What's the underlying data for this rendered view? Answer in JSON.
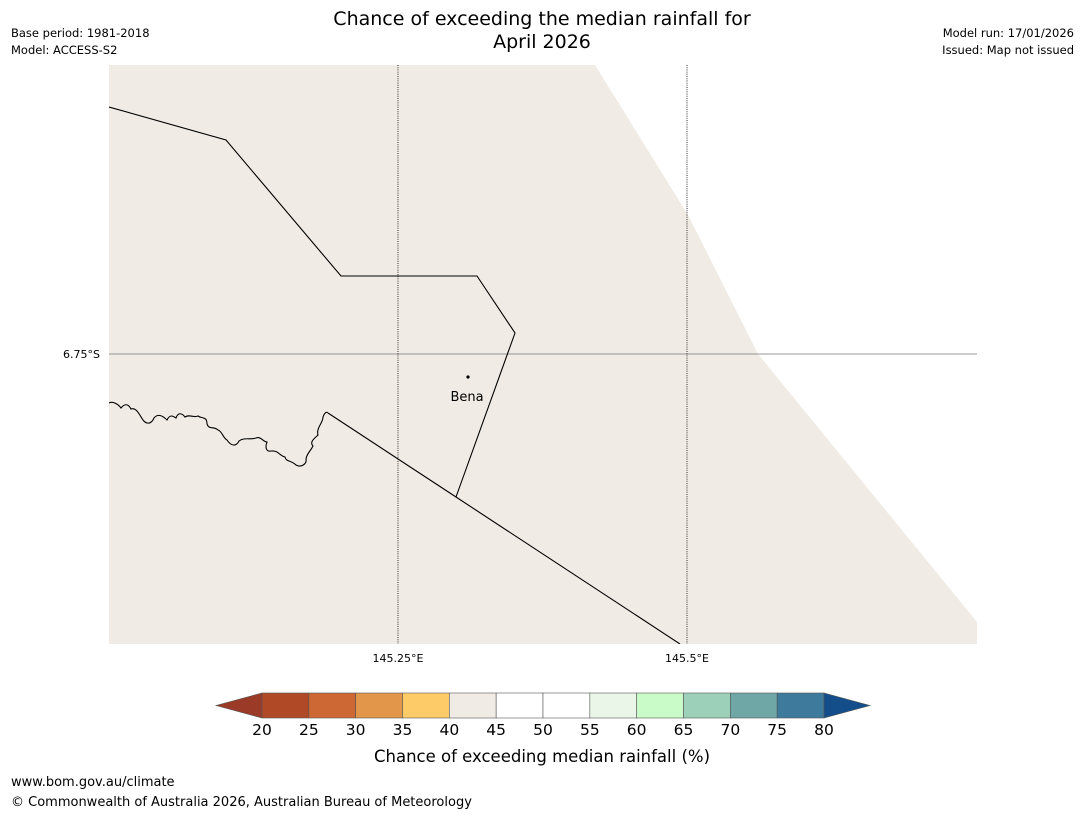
{
  "header": {
    "base_period": "Base period: 1981-2018",
    "model": "Model: ACCESS-S2",
    "model_run": "Model run: 17/01/2026",
    "issued": "Issued: Map not issued",
    "title_line1": "Chance of exceeding the median rainfall for",
    "title_line2": "April 2026"
  },
  "map": {
    "latitude_labels": [
      "6.75°S"
    ],
    "longitude_labels": [
      "145.25°E",
      "145.5°E"
    ],
    "place": {
      "name": "Bena"
    },
    "land_color": "#f0ebe5",
    "sea_color": "#ffffff"
  },
  "colorbar": {
    "ticks": [
      "20",
      "25",
      "30",
      "35",
      "40",
      "45",
      "50",
      "55",
      "60",
      "65",
      "70",
      "75",
      "80"
    ],
    "under_color": "#9b3a26",
    "over_color": "#134e8a",
    "colors": [
      "#b04a26",
      "#cd6733",
      "#e29649",
      "#fecb69",
      "#f0ebe5",
      "#ffffff",
      "#ffffff",
      "#eaf6e8",
      "#c9fbc8",
      "#9dd0b8",
      "#6fa6a6",
      "#3e7a9b"
    ],
    "label": "Chance of exceeding median rainfall (%)"
  },
  "footer": {
    "url": "www.bom.gov.au/climate",
    "copyright": "© Commonwealth of Australia 2026, Australian Bureau of Meteorology"
  }
}
